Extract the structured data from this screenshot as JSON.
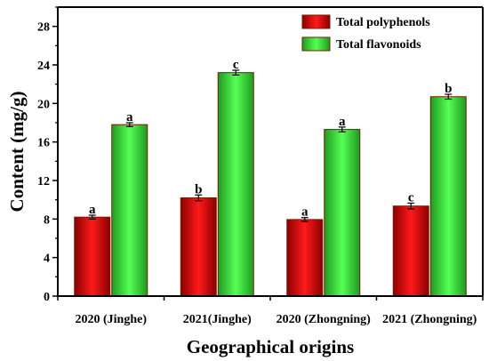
{
  "colors": {
    "total_polyphenols": "#e00000",
    "total_flavonoids": "#33ee33",
    "bar_outline": "#7a1b00",
    "axis": "#000000"
  },
  "chart_data": {
    "type": "bar",
    "title": "",
    "xlabel": "Geographical origins",
    "ylabel": "Content (mg/g)",
    "categories": [
      "2020 (Jinghe)",
      "2021(Jinghe)",
      "2020 (Zhongning)",
      "2021 (Zhongning)"
    ],
    "ylim": [
      0,
      30
    ],
    "yticks": [
      0,
      4,
      8,
      12,
      16,
      20,
      24,
      28
    ],
    "grid": false,
    "legend": "top-right",
    "series": [
      {
        "name": "Total polyphenols",
        "values": [
          8.2,
          10.2,
          7.95,
          9.35
        ],
        "errors": [
          0.2,
          0.3,
          0.2,
          0.3
        ],
        "letters": [
          "a",
          "b",
          "a",
          "c"
        ]
      },
      {
        "name": "Total flavonoids",
        "values": [
          17.8,
          23.2,
          17.3,
          20.7
        ],
        "errors": [
          0.2,
          0.25,
          0.25,
          0.25
        ],
        "letters": [
          "a",
          "c",
          "a",
          "b"
        ]
      }
    ]
  }
}
